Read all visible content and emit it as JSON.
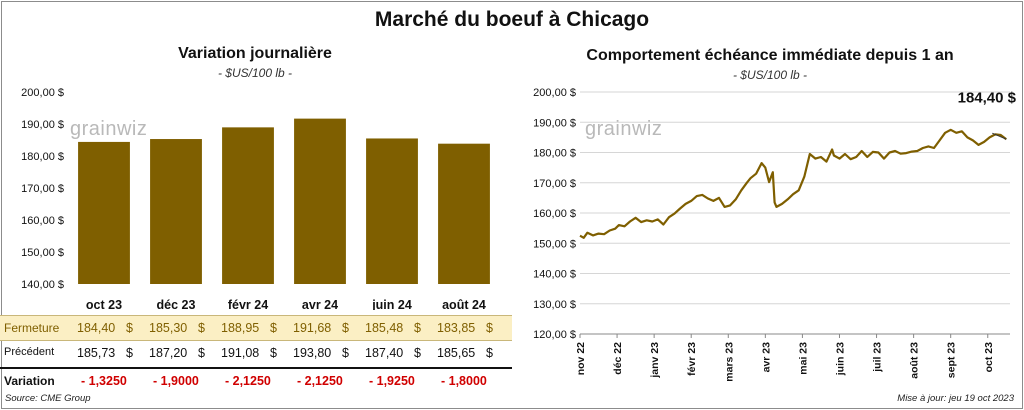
{
  "title": "Marché du boeuf à Chicago",
  "watermark": "grainwiz",
  "footer": {
    "source": "Source: CME Group",
    "update": "Mise à jour: jeu 19 oct 2023"
  },
  "table": {
    "row_labels": {
      "fermeture": "Fermeture",
      "precedent": "Précédent",
      "variation": "Variation"
    },
    "currency_symbol": "$",
    "fermeture": [
      "184,40",
      "185,30",
      "188,95",
      "191,68",
      "185,48",
      "183,85"
    ],
    "precedent": [
      "185,73",
      "187,20",
      "191,08",
      "193,80",
      "187,40",
      "185,65"
    ],
    "variation": [
      "- 1,3250",
      "- 1,9000",
      "- 2,1250",
      "- 2,1250",
      "- 1,9250",
      "- 1,8000"
    ]
  },
  "chart_data": [
    {
      "type": "bar",
      "title": "Variation  journalière",
      "subtitle": "- $US/100 lb -",
      "categories": [
        "oct 23",
        "déc 23",
        "févr 24",
        "avr 24",
        "juin 24",
        "août 24"
      ],
      "values": [
        184.4,
        185.3,
        188.95,
        191.68,
        185.48,
        183.85
      ],
      "ylim": [
        140,
        200
      ],
      "yticks": [
        "140,00 $",
        "150,00 $",
        "160,00 $",
        "170,00 $",
        "180,00 $",
        "190,00 $",
        "200,00 $"
      ],
      "ytick_values": [
        140,
        150,
        160,
        170,
        180,
        190,
        200
      ],
      "bar_color": "#7f5f00",
      "grid": false
    },
    {
      "type": "line",
      "title": "Comportement  échéance immédiate depuis 1 an",
      "subtitle": "- $US/100 lb -",
      "x_labels": [
        "nov 22",
        "déc 22",
        "janv 23",
        "févr 23",
        "mars 23",
        "avr 23",
        "mai 23",
        "juin 23",
        "juil 23",
        "août 23",
        "sept 23",
        "oct 23"
      ],
      "x_label_positions": [
        0.0,
        1.0,
        2.0,
        3.0,
        4.0,
        5.0,
        6.0,
        7.0,
        8.0,
        9.0,
        10.0,
        11.0
      ],
      "xlim": [
        0,
        11.6
      ],
      "ylim": [
        120,
        200
      ],
      "yticks": [
        "120,00 $",
        "130,00 $",
        "140,00 $",
        "150,00 $",
        "160,00 $",
        "170,00 $",
        "180,00 $",
        "190,00 $",
        "200,00 $"
      ],
      "ytick_values": [
        120,
        130,
        140,
        150,
        160,
        170,
        180,
        190,
        200
      ],
      "last_value_label": "184,40 $",
      "line_color": "#7f5f00",
      "grid": true,
      "x": [
        0.0,
        0.1,
        0.2,
        0.35,
        0.5,
        0.65,
        0.8,
        0.95,
        1.05,
        1.2,
        1.35,
        1.5,
        1.65,
        1.8,
        1.95,
        2.1,
        2.25,
        2.4,
        2.55,
        2.7,
        2.85,
        3.0,
        3.15,
        3.3,
        3.45,
        3.6,
        3.75,
        3.9,
        4.05,
        4.2,
        4.35,
        4.5,
        4.6,
        4.75,
        4.9,
        5.0,
        5.1,
        5.2,
        5.25,
        5.3,
        5.45,
        5.6,
        5.75,
        5.9,
        6.05,
        6.2,
        6.35,
        6.5,
        6.65,
        6.8,
        6.85,
        7.0,
        7.15,
        7.3,
        7.45,
        7.6,
        7.75,
        7.9,
        8.05,
        8.2,
        8.35,
        8.5,
        8.65,
        8.8,
        8.95,
        9.1,
        9.25,
        9.4,
        9.55,
        9.7,
        9.85,
        10.0,
        10.15,
        10.3,
        10.45,
        10.6,
        10.75,
        10.9,
        11.05,
        11.2,
        11.35,
        11.5
      ],
      "y": [
        152.5,
        151.8,
        153.5,
        152.6,
        153.2,
        153.0,
        154.2,
        154.8,
        156.0,
        155.6,
        157.2,
        158.4,
        157.0,
        157.6,
        157.2,
        157.9,
        156.2,
        158.6,
        159.8,
        161.5,
        163.0,
        164.0,
        165.6,
        166.0,
        164.8,
        164.0,
        165.0,
        162.0,
        162.5,
        164.5,
        167.5,
        170.0,
        171.5,
        173.0,
        176.5,
        175.0,
        170.2,
        173.5,
        163.5,
        162.0,
        163.0,
        164.5,
        166.2,
        167.5,
        172.0,
        179.5,
        178.0,
        178.5,
        177.0,
        181.0,
        179.0,
        178.0,
        179.5,
        177.8,
        178.5,
        180.5,
        178.5,
        180.2,
        180.0,
        178.0,
        180.0,
        180.5,
        179.6,
        179.8,
        180.3,
        180.5,
        181.5,
        182.0,
        181.5,
        184.0,
        186.5,
        187.5,
        186.5,
        187.0,
        185.0,
        184.0,
        182.5,
        183.5,
        185.0,
        186.0,
        185.8,
        184.4
      ]
    }
  ]
}
